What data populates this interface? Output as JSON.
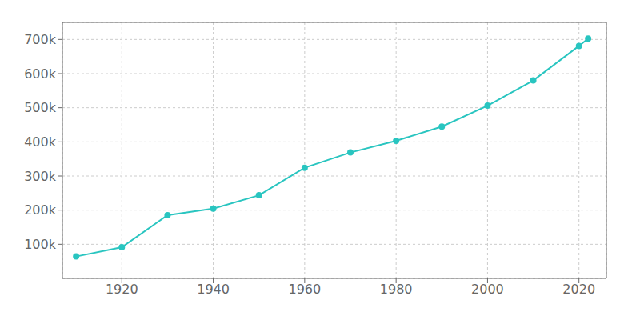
{
  "chart_data": {
    "type": "line",
    "x": [
      1910,
      1920,
      1930,
      1940,
      1950,
      1960,
      1970,
      1980,
      1990,
      2000,
      2010,
      2020,
      2022
    ],
    "values": [
      64205,
      91295,
      185389,
      204424,
      243504,
      324253,
      368900,
      403213,
      444719,
      506132,
      579999,
      681054,
      702767
    ],
    "color": "#29c5c0",
    "marker": "circle",
    "xlim": [
      1907,
      2026
    ],
    "xticks": [
      1920,
      1940,
      1960,
      1980,
      2000,
      2020
    ],
    "ylim": [
      0,
      750000
    ],
    "yticks": [
      {
        "value": 100000,
        "label": "100k"
      },
      {
        "value": 200000,
        "label": "200k"
      },
      {
        "value": 300000,
        "label": "300k"
      },
      {
        "value": 400000,
        "label": "400k"
      },
      {
        "value": 500000,
        "label": "500k"
      },
      {
        "value": 600000,
        "label": "600k"
      },
      {
        "value": 700000,
        "label": "700k"
      }
    ],
    "grid": true
  }
}
